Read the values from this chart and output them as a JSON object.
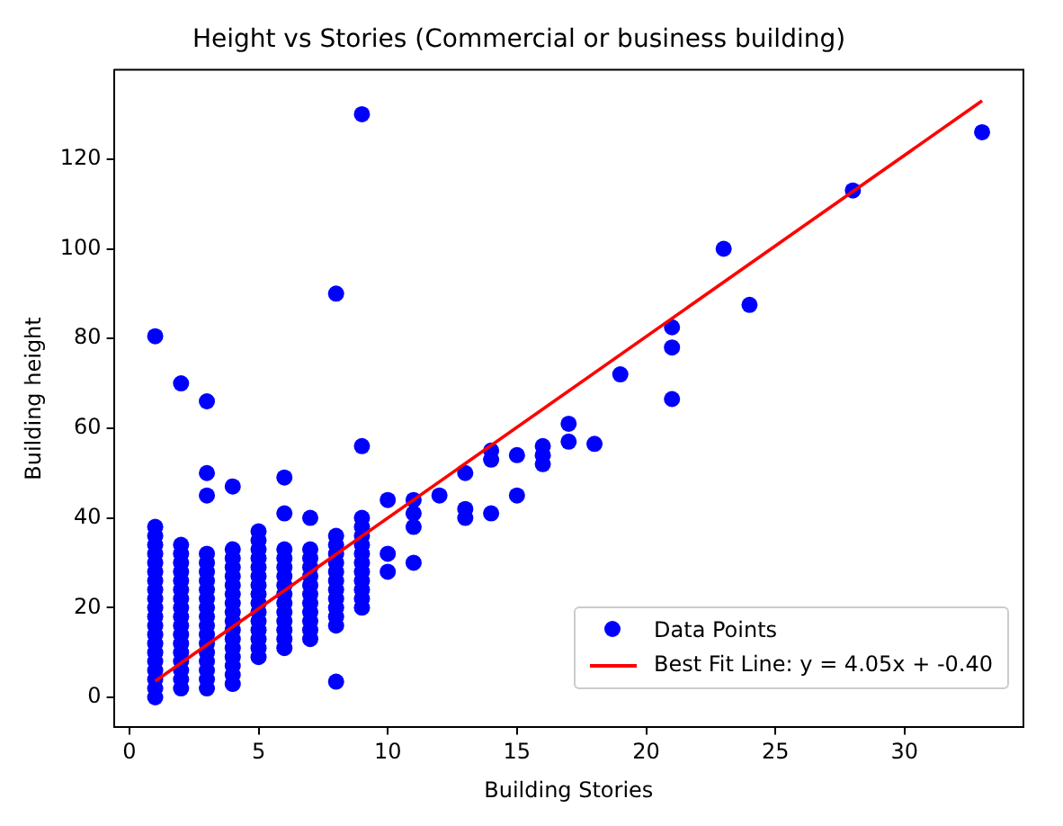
{
  "chart_data": {
    "type": "scatter",
    "title": "Height vs Stories (Commercial or business building)",
    "xlabel": "Building Stories",
    "ylabel": "Building height",
    "xlim": [
      -0.6,
      34.6
    ],
    "ylim": [
      -6.7,
      139.9
    ],
    "xticks": [
      0,
      5,
      10,
      15,
      20,
      25,
      30
    ],
    "yticks": [
      0,
      20,
      40,
      60,
      80,
      100,
      120
    ],
    "grid": false,
    "legend": "bottom right",
    "series": [
      {
        "name": "Data Points",
        "type": "scatter",
        "marker": "circle",
        "color": "#0000ff",
        "x": [
          1,
          1,
          1,
          1,
          1,
          1,
          1,
          1,
          1,
          1,
          1,
          1,
          1,
          1,
          1,
          1,
          1,
          1,
          1,
          1,
          1,
          2,
          2,
          2,
          2,
          2,
          2,
          2,
          2,
          2,
          2,
          2,
          2,
          2,
          2,
          2,
          2,
          2,
          2,
          3,
          3,
          3,
          3,
          3,
          3,
          3,
          3,
          3,
          3,
          3,
          3,
          3,
          3,
          3,
          3,
          3,
          3,
          3,
          4,
          4,
          4,
          4,
          4,
          4,
          4,
          4,
          4,
          4,
          4,
          4,
          4,
          4,
          4,
          4,
          4,
          5,
          5,
          5,
          5,
          5,
          5,
          5,
          5,
          5,
          5,
          5,
          5,
          5,
          5,
          5,
          6,
          6,
          6,
          6,
          6,
          6,
          6,
          6,
          6,
          6,
          6,
          6,
          6,
          6,
          7,
          7,
          7,
          7,
          7,
          7,
          7,
          7,
          7,
          7,
          7,
          7,
          8,
          8,
          8,
          8,
          8,
          8,
          8,
          8,
          8,
          8,
          8,
          8,
          8,
          9,
          9,
          9,
          9,
          9,
          9,
          9,
          9,
          9,
          9,
          9,
          9,
          9,
          10,
          10,
          10,
          11,
          11,
          11,
          11,
          12,
          13,
          13,
          13,
          14,
          14,
          14,
          15,
          15,
          16,
          16,
          16,
          17,
          17,
          18,
          19,
          21,
          21,
          21,
          23,
          24,
          28,
          33
        ],
        "values": [
          0,
          2,
          4,
          6,
          8,
          10,
          12,
          14,
          16,
          18,
          20,
          22,
          24,
          26,
          28,
          30,
          32,
          34,
          36,
          38,
          80.5,
          2,
          4,
          6,
          8,
          10,
          12,
          14,
          16,
          18,
          20,
          22,
          24,
          26,
          28,
          30,
          32,
          34,
          70,
          2,
          4,
          6,
          8,
          10,
          12,
          14,
          16,
          18,
          20,
          22,
          24,
          26,
          28,
          30,
          32,
          45,
          50,
          66,
          3,
          5,
          7,
          9,
          11,
          13,
          15,
          17,
          19,
          21,
          23,
          25,
          27,
          29,
          31,
          33,
          47,
          9,
          11,
          13,
          15,
          17,
          19,
          21,
          23,
          25,
          27,
          29,
          31,
          33,
          35,
          37,
          11,
          13,
          15,
          17,
          19,
          21,
          23,
          25,
          27,
          29,
          31,
          33,
          41,
          49,
          13,
          15,
          17,
          19,
          21,
          23,
          25,
          27,
          29,
          31,
          33,
          40,
          3.5,
          16,
          18,
          20,
          22,
          24,
          26,
          28,
          30,
          32,
          34,
          36,
          90,
          20,
          22,
          24,
          26,
          28,
          30,
          32,
          34,
          36,
          38,
          40,
          56,
          130,
          28,
          32,
          44,
          30,
          38,
          41,
          44,
          45,
          40,
          42,
          50,
          41,
          53,
          55,
          45,
          54,
          52,
          54,
          56,
          57,
          61,
          56.5,
          72,
          66.5,
          78,
          82.5,
          100,
          87.5,
          113,
          126
        ]
      },
      {
        "name": "Best Fit Line: y = 4.05x + -0.40",
        "type": "line",
        "line_style": "solid",
        "color": "#ff0000",
        "x": [
          1,
          33
        ],
        "values": [
          3.6,
          133
        ]
      }
    ]
  }
}
